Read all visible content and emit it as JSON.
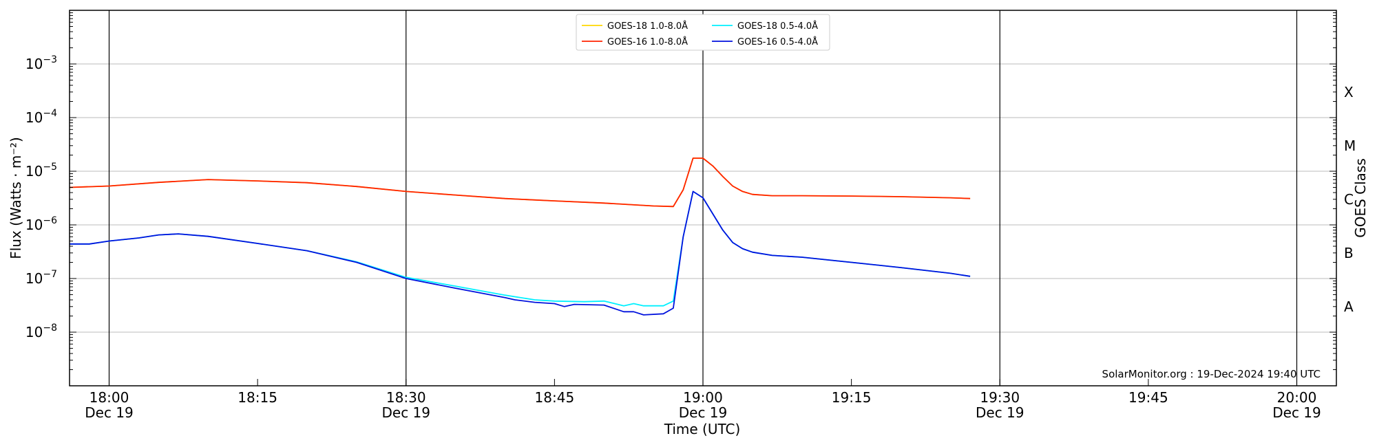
{
  "chart_data": {
    "type": "line",
    "xlabel": "Time (UTC)",
    "ylabel": "Flux (Watts · m⁻²)",
    "y2label": "GOES Class",
    "yscale": "log",
    "xlim": [
      "17:56",
      "20:04"
    ],
    "ylim": [
      1e-09,
      0.01
    ],
    "grid": "horizontal",
    "legend_position": "top-center",
    "credit": "SolarMonitor.org : 19-Dec-2024 19:40 UTC",
    "x_ticks": [
      {
        "time": "18:00",
        "label": "18:00",
        "sub": "Dec 19"
      },
      {
        "time": "18:15",
        "label": "18:15",
        "sub": ""
      },
      {
        "time": "18:30",
        "label": "18:30",
        "sub": "Dec 19"
      },
      {
        "time": "18:45",
        "label": "18:45",
        "sub": ""
      },
      {
        "time": "19:00",
        "label": "19:00",
        "sub": "Dec 19"
      },
      {
        "time": "19:15",
        "label": "19:15",
        "sub": ""
      },
      {
        "time": "19:30",
        "label": "19:30",
        "sub": "Dec 19"
      },
      {
        "time": "19:45",
        "label": "19:45",
        "sub": ""
      },
      {
        "time": "20:00",
        "label": "20:00",
        "sub": "Dec 19"
      }
    ],
    "day_lines": [
      "18:00",
      "18:30",
      "19:00",
      "19:30",
      "20:00"
    ],
    "y_ticks": [
      {
        "value": 1e-08,
        "exp": "−8"
      },
      {
        "value": 1e-07,
        "exp": "−7"
      },
      {
        "value": 1e-06,
        "exp": "−6"
      },
      {
        "value": 1e-05,
        "exp": "−5"
      },
      {
        "value": 0.0001,
        "exp": "−4"
      },
      {
        "value": 0.001,
        "exp": "−3"
      }
    ],
    "goes_classes": [
      {
        "label": "A",
        "value": 3e-08
      },
      {
        "label": "B",
        "value": 3e-07
      },
      {
        "label": "C",
        "value": 3e-06
      },
      {
        "label": "M",
        "value": 3e-05
      },
      {
        "label": "X",
        "value": 0.0003
      }
    ],
    "series": [
      {
        "name": "GOES-18 1.0-8.0Å",
        "color": "#ffd700",
        "points": [
          [
            "17:56",
            5e-06
          ],
          [
            "18:00",
            5.3e-06
          ],
          [
            "18:05",
            6.2e-06
          ],
          [
            "18:10",
            7e-06
          ],
          [
            "18:15",
            6.6e-06
          ],
          [
            "18:20",
            6.1e-06
          ],
          [
            "18:25",
            5.2e-06
          ],
          [
            "18:30",
            4.2e-06
          ],
          [
            "18:35",
            3.6e-06
          ],
          [
            "18:40",
            3.1e-06
          ],
          [
            "18:45",
            2.8e-06
          ],
          [
            "18:50",
            2.55e-06
          ],
          [
            "18:55",
            2.25e-06
          ],
          [
            "18:57",
            2.2e-06
          ],
          [
            "18:58",
            4.5e-06
          ],
          [
            "18:59",
            1.75e-05
          ],
          [
            "19:00",
            1.75e-05
          ],
          [
            "19:01",
            1.25e-05
          ],
          [
            "19:02",
            8e-06
          ],
          [
            "19:03",
            5.3e-06
          ],
          [
            "19:04",
            4.2e-06
          ],
          [
            "19:05",
            3.7e-06
          ],
          [
            "19:07",
            3.5e-06
          ],
          [
            "19:10",
            3.5e-06
          ],
          [
            "19:15",
            3.45e-06
          ],
          [
            "19:20",
            3.35e-06
          ],
          [
            "19:25",
            3.2e-06
          ],
          [
            "19:27",
            3.1e-06
          ]
        ]
      },
      {
        "name": "GOES-16 1.0-8.0Å",
        "color": "#ff2200",
        "points": [
          [
            "17:56",
            5e-06
          ],
          [
            "18:00",
            5.3e-06
          ],
          [
            "18:05",
            6.2e-06
          ],
          [
            "18:10",
            7e-06
          ],
          [
            "18:15",
            6.6e-06
          ],
          [
            "18:20",
            6.1e-06
          ],
          [
            "18:25",
            5.2e-06
          ],
          [
            "18:30",
            4.2e-06
          ],
          [
            "18:35",
            3.6e-06
          ],
          [
            "18:40",
            3.1e-06
          ],
          [
            "18:45",
            2.8e-06
          ],
          [
            "18:50",
            2.55e-06
          ],
          [
            "18:55",
            2.25e-06
          ],
          [
            "18:57",
            2.2e-06
          ],
          [
            "18:58",
            4.5e-06
          ],
          [
            "18:59",
            1.75e-05
          ],
          [
            "19:00",
            1.75e-05
          ],
          [
            "19:01",
            1.25e-05
          ],
          [
            "19:02",
            8e-06
          ],
          [
            "19:03",
            5.3e-06
          ],
          [
            "19:04",
            4.2e-06
          ],
          [
            "19:05",
            3.7e-06
          ],
          [
            "19:07",
            3.5e-06
          ],
          [
            "19:10",
            3.5e-06
          ],
          [
            "19:15",
            3.45e-06
          ],
          [
            "19:20",
            3.35e-06
          ],
          [
            "19:25",
            3.2e-06
          ],
          [
            "19:27",
            3.1e-06
          ]
        ]
      },
      {
        "name": "GOES-18 0.5-4.0Å",
        "color": "#00f0ff",
        "points": [
          [
            "17:56",
            4.4e-07
          ],
          [
            "17:58",
            4.4e-07
          ],
          [
            "18:00",
            5e-07
          ],
          [
            "18:03",
            5.7e-07
          ],
          [
            "18:05",
            6.5e-07
          ],
          [
            "18:07",
            6.8e-07
          ],
          [
            "18:10",
            6.1e-07
          ],
          [
            "18:15",
            4.5e-07
          ],
          [
            "18:20",
            3.3e-07
          ],
          [
            "18:25",
            2.05e-07
          ],
          [
            "18:30",
            1.05e-07
          ],
          [
            "18:35",
            7.2e-08
          ],
          [
            "18:40",
            4.9e-08
          ],
          [
            "18:43",
            4e-08
          ],
          [
            "18:45",
            3.8e-08
          ],
          [
            "18:48",
            3.7e-08
          ],
          [
            "18:50",
            3.8e-08
          ],
          [
            "18:52",
            3.1e-08
          ],
          [
            "18:53",
            3.4e-08
          ],
          [
            "18:54",
            3.1e-08
          ],
          [
            "18:56",
            3.1e-08
          ],
          [
            "18:57",
            3.8e-08
          ],
          [
            "18:58",
            6e-07
          ],
          [
            "18:59",
            4.2e-06
          ],
          [
            "19:00",
            3.2e-06
          ],
          [
            "19:01",
            1.6e-06
          ],
          [
            "19:02",
            8e-07
          ],
          [
            "19:03",
            4.7e-07
          ],
          [
            "19:04",
            3.6e-07
          ],
          [
            "19:05",
            3.1e-07
          ],
          [
            "19:07",
            2.7e-07
          ],
          [
            "19:10",
            2.5e-07
          ],
          [
            "19:15",
            2e-07
          ],
          [
            "19:20",
            1.6e-07
          ],
          [
            "19:25",
            1.25e-07
          ],
          [
            "19:27",
            1.1e-07
          ]
        ]
      },
      {
        "name": "GOES-16 0.5-4.0Å",
        "color": "#0011dd",
        "points": [
          [
            "17:56",
            4.4e-07
          ],
          [
            "17:58",
            4.4e-07
          ],
          [
            "18:00",
            5e-07
          ],
          [
            "18:03",
            5.7e-07
          ],
          [
            "18:05",
            6.5e-07
          ],
          [
            "18:07",
            6.8e-07
          ],
          [
            "18:10",
            6.1e-07
          ],
          [
            "18:15",
            4.5e-07
          ],
          [
            "18:20",
            3.3e-07
          ],
          [
            "18:25",
            2e-07
          ],
          [
            "18:30",
            1e-07
          ],
          [
            "18:35",
            6.6e-08
          ],
          [
            "18:40",
            4.4e-08
          ],
          [
            "18:41",
            4e-08
          ],
          [
            "18:43",
            3.6e-08
          ],
          [
            "18:45",
            3.4e-08
          ],
          [
            "18:46",
            3e-08
          ],
          [
            "18:47",
            3.3e-08
          ],
          [
            "18:50",
            3.2e-08
          ],
          [
            "18:52",
            2.4e-08
          ],
          [
            "18:53",
            2.4e-08
          ],
          [
            "18:54",
            2.1e-08
          ],
          [
            "18:56",
            2.2e-08
          ],
          [
            "18:57",
            2.8e-08
          ],
          [
            "18:58",
            6e-07
          ],
          [
            "18:59",
            4.2e-06
          ],
          [
            "19:00",
            3.2e-06
          ],
          [
            "19:01",
            1.6e-06
          ],
          [
            "19:02",
            8e-07
          ],
          [
            "19:03",
            4.7e-07
          ],
          [
            "19:04",
            3.6e-07
          ],
          [
            "19:05",
            3.1e-07
          ],
          [
            "19:07",
            2.7e-07
          ],
          [
            "19:10",
            2.5e-07
          ],
          [
            "19:15",
            2e-07
          ],
          [
            "19:20",
            1.6e-07
          ],
          [
            "19:25",
            1.25e-07
          ],
          [
            "19:27",
            1.1e-07
          ]
        ]
      }
    ]
  }
}
